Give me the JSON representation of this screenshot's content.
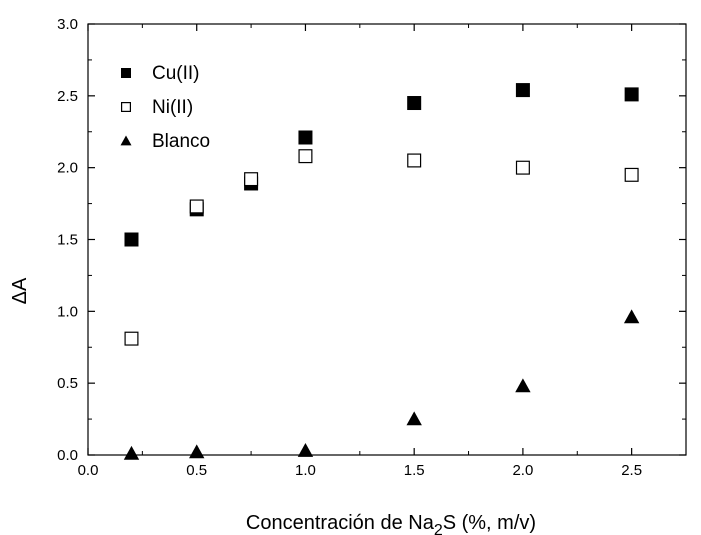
{
  "chart_data": {
    "type": "scatter",
    "xlabel_prefix": "Concentración de Na",
    "xlabel_sub": "2",
    "xlabel_suffix": "S  (%, m/v)",
    "ylabel": "ΔA",
    "xlim": [
      0.0,
      2.75
    ],
    "ylim": [
      0.0,
      3.0
    ],
    "xticks": [
      "0.0",
      "0.5",
      "1.0",
      "1.5",
      "2.0",
      "2.5"
    ],
    "yticks": [
      "0.0",
      "0.5",
      "1.0",
      "1.5",
      "2.0",
      "2.5",
      "3.0"
    ],
    "grid": false,
    "legend_position": "top-left",
    "series": [
      {
        "name": "Cu(II)",
        "marker": "filled-square",
        "color": "#000000",
        "x": [
          0.2,
          0.5,
          0.75,
          1.0,
          1.5,
          2.0,
          2.5
        ],
        "y": [
          1.5,
          1.71,
          1.89,
          2.21,
          2.45,
          2.54,
          2.51
        ]
      },
      {
        "name": "Ni(II)",
        "marker": "open-square",
        "color": "#000000",
        "x": [
          0.2,
          0.5,
          0.75,
          1.0,
          1.5,
          2.0,
          2.5
        ],
        "y": [
          0.81,
          1.73,
          1.92,
          2.08,
          2.05,
          2.0,
          1.95
        ]
      },
      {
        "name": "Blanco",
        "marker": "filled-triangle",
        "color": "#000000",
        "x": [
          0.2,
          0.5,
          1.0,
          1.5,
          2.0,
          2.5
        ],
        "y": [
          0.01,
          0.02,
          0.03,
          0.25,
          0.48,
          0.96
        ]
      }
    ]
  }
}
